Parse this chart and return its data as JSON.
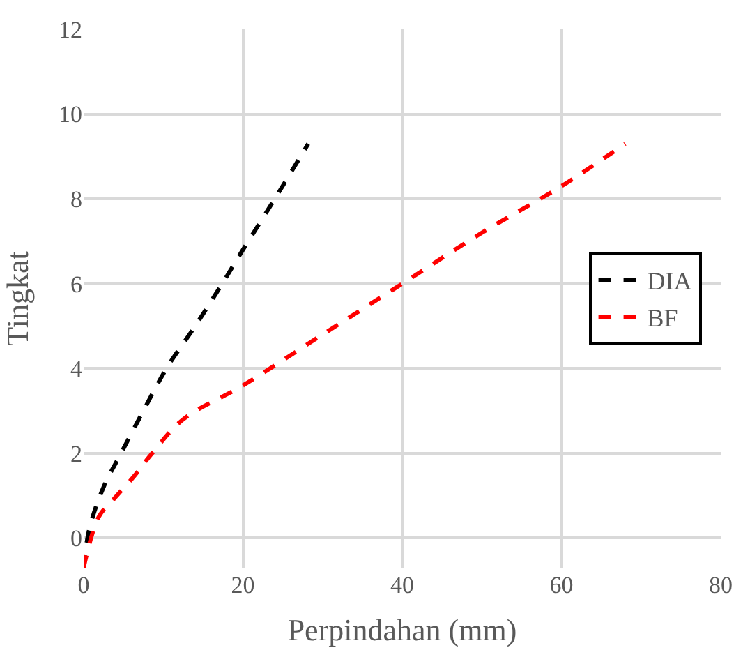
{
  "chart_data": {
    "type": "line",
    "xlabel": "Perpindahan (mm)",
    "ylabel": "Tingkat",
    "xlim": [
      0,
      80
    ],
    "xticks": [
      0,
      20,
      40,
      60,
      80
    ],
    "ylim": [
      -0.7,
      12
    ],
    "yticks": [
      0,
      2,
      4,
      6,
      8,
      10,
      12
    ],
    "grid": true,
    "legend": "right",
    "line_style": "dashed",
    "series": [
      {
        "name": "DIA",
        "color": "#000000",
        "x": [
          0,
          0.7,
          2.5,
          4.7,
          7.5,
          10.4,
          14,
          17.4,
          20,
          24,
          28.2
        ],
        "values": [
          -0.7,
          0.2,
          1.2,
          2.0,
          3.0,
          4.0,
          5.0,
          6.0,
          6.8,
          8.0,
          9.3
        ]
      },
      {
        "name": "BF",
        "color": "#ff0000",
        "x": [
          0,
          1.9,
          3.7,
          6.3,
          8.6,
          12.5,
          20,
          30,
          40,
          50,
          60,
          68
        ],
        "values": [
          -0.7,
          0.5,
          0.9,
          1.45,
          2.0,
          2.8,
          3.6,
          4.8,
          6.0,
          7.2,
          8.3,
          9.3
        ]
      }
    ]
  }
}
